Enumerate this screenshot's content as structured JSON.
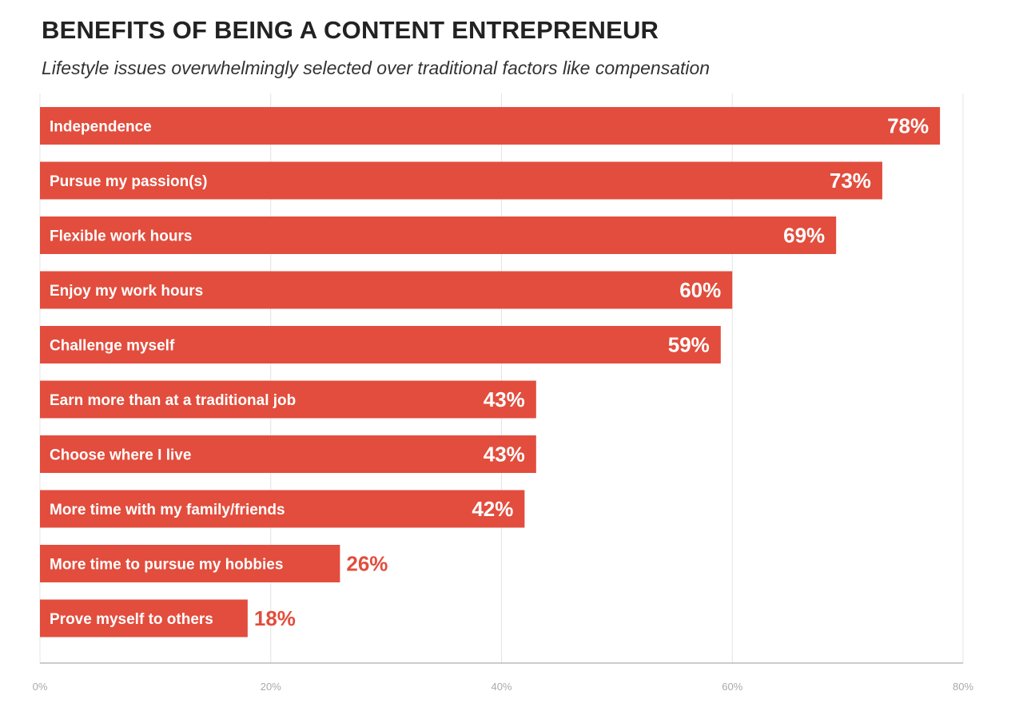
{
  "chart_data": {
    "type": "bar",
    "orientation": "horizontal",
    "title": "BENEFITS OF BEING A CONTENT ENTREPRENEUR",
    "subtitle": "Lifestyle issues overwhelmingly selected over traditional factors like compensation",
    "categories": [
      "Independence",
      "Pursue my passion(s)",
      "Flexible work hours",
      "Enjoy my work hours",
      "Challenge myself",
      "Earn more than at a traditional job",
      "Choose where I live",
      "More time with my family/friends",
      "More time to pursue my hobbies",
      "Prove myself to others"
    ],
    "values": [
      78,
      73,
      69,
      60,
      59,
      43,
      43,
      42,
      26,
      18
    ],
    "value_labels": [
      "78%",
      "73%",
      "69%",
      "60%",
      "59%",
      "43%",
      "43%",
      "42%",
      "26%",
      "18%"
    ],
    "xlim": [
      0,
      80
    ],
    "xticks": [
      0,
      20,
      40,
      60,
      80
    ],
    "xtick_labels": [
      "0%",
      "20%",
      "40%",
      "60%",
      "80%"
    ],
    "grid": true,
    "colors": {
      "bar": "#e24d3d",
      "bar_text": "#ffffff",
      "outside_value": "#e24d3d",
      "grid": "#e4e4e4",
      "axis": "#bbbbbb",
      "tick_text": "#aaaaaa"
    }
  }
}
